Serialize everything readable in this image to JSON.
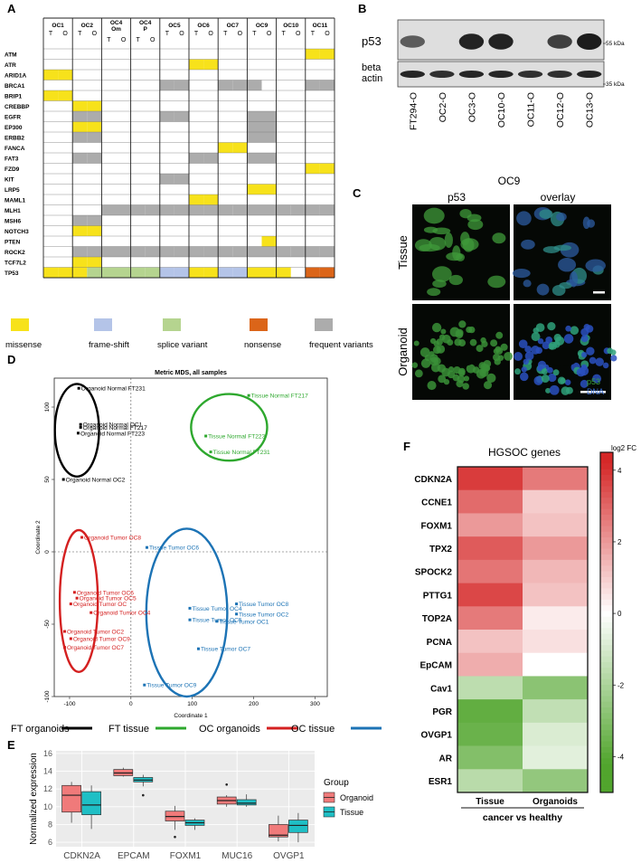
{
  "panels": {
    "A": {
      "letter": "A",
      "samples": [
        "OC1",
        "OC2",
        "OC4\nOm",
        "OC4\nP",
        "OC5",
        "OC6",
        "OC7",
        "OC9",
        "OC10",
        "OC11"
      ],
      "sub_labels": [
        "T",
        "O"
      ],
      "genes": [
        "ATM",
        "ATR",
        "ARID1A",
        "BRCA1",
        "BRIP1",
        "CREBBP",
        "EGFR",
        "EP300",
        "ERBB2",
        "FANCA",
        "FAT3",
        "FZD9",
        "KIT",
        "LRP5",
        "MAML1",
        "MLH1",
        "MSH6",
        "NOTCH3",
        "PTEN",
        "ROCK2",
        "TCF7L2",
        "TP53"
      ],
      "legend": [
        {
          "label": "missense",
          "color": "#f7e21b"
        },
        {
          "label": "frame-shift",
          "color": "#b4c4e8"
        },
        {
          "label": "splice variant",
          "color": "#b5d48f"
        },
        {
          "label": "nonsense",
          "color": "#db6519"
        },
        {
          "label": "frequent variants",
          "color": "#acacac"
        }
      ]
    },
    "B": {
      "letter": "B",
      "row_labels": [
        "p53",
        "beta\nactin"
      ],
      "markers": [
        "55 kDa",
        "35 kDa"
      ],
      "lanes": [
        "FT294-O",
        "OC2-O",
        "OC3-O",
        "OC10-O",
        "OC11-O",
        "OC12-O",
        "OC13-O"
      ],
      "p53_intensity": [
        0.55,
        0.0,
        0.95,
        0.95,
        0.0,
        0.75,
        1.0
      ],
      "actin_intensity": [
        0.9,
        0.85,
        0.9,
        0.9,
        0.85,
        0.85,
        0.9
      ]
    },
    "C": {
      "letter": "C",
      "title": "OC9",
      "col_labels": [
        "p53",
        "overlay"
      ],
      "row_labels": [
        "Tissue",
        "Organoid"
      ],
      "legend_p53": "p53",
      "legend_dna": "DNA"
    },
    "D": {
      "letter": "D",
      "title": "Metric MDS, all samples",
      "xlabel": "Coordinate 1",
      "ylabel": "Coordinate 2",
      "legend": [
        {
          "label": "FT organoids",
          "color": "#000000"
        },
        {
          "label": "FT tissue",
          "color": "#2ea82e"
        },
        {
          "label": "OC organoids",
          "color": "#d42020"
        },
        {
          "label": "OC tissue",
          "color": "#1c73b5"
        }
      ]
    },
    "E": {
      "letter": "E",
      "ylabel": "Normalized expression",
      "legend_title": "Group",
      "legend_items": [
        "Organoid",
        "Tissue"
      ]
    },
    "F": {
      "letter": "F",
      "title": "HGSOC genes",
      "colorbar_title": "log2 FC",
      "columns": [
        "Tissue",
        "Organoids"
      ],
      "footer": "cancer vs healthy"
    }
  },
  "chart_data": [
    {
      "type": "table",
      "panel": "A",
      "description_cells": {
        "ATM": {
          "OC11": [
            "yellow",
            "yellow"
          ]
        },
        "ATR": {
          "OC6": [
            "yellow",
            "yellow"
          ]
        },
        "ARID1A": {
          "OC1": [
            "yellow",
            "yellow"
          ]
        },
        "BRCA1": {
          "OC5": [
            "gray",
            "gray"
          ],
          "OC7": [
            "gray",
            "gray"
          ],
          "OC9": [
            "gray",
            "white"
          ],
          "OC11": [
            "gray",
            "gray"
          ]
        },
        "BRIP1": {
          "OC1": [
            "yellow",
            "yellow"
          ]
        },
        "CREBBP": {
          "OC2": [
            "yellow",
            "yellow"
          ]
        },
        "EGFR": {
          "OC2": [
            "gray",
            "gray"
          ],
          "OC5": [
            "gray",
            "gray"
          ],
          "OC9": [
            "gray",
            "gray"
          ]
        },
        "EP300": {
          "OC2": [
            "yellow",
            "yellow"
          ],
          "OC9": [
            "gray",
            "gray"
          ]
        },
        "ERBB2": {
          "OC2": [
            "gray",
            "gray"
          ],
          "OC9": [
            "gray",
            "gray"
          ]
        },
        "FANCA": {
          "OC7": [
            "yellow",
            "yellow"
          ]
        },
        "FAT3": {
          "OC2": [
            "gray",
            "gray"
          ],
          "OC6": [
            "gray",
            "gray"
          ],
          "OC9": [
            "gray",
            "gray"
          ]
        },
        "FZD9": {
          "OC11": [
            "yellow",
            "yellow"
          ]
        },
        "KIT": {
          "OC5": [
            "gray",
            "gray"
          ]
        },
        "LRP5": {
          "OC9": [
            "yellow",
            "yellow"
          ]
        },
        "MAML1": {
          "OC6": [
            "yellow",
            "yellow"
          ]
        },
        "MLH1": {
          "OC4\nOm": [
            "gray",
            "gray"
          ],
          "OC4\nP": [
            "gray",
            "gray"
          ],
          "OC5": [
            "gray",
            "gray"
          ],
          "OC6": [
            "gray",
            "gray"
          ],
          "OC7": [
            "gray",
            "gray"
          ],
          "OC9": [
            "gray",
            "gray"
          ],
          "OC10": [
            "gray",
            "gray"
          ],
          "OC11": [
            "gray",
            "gray"
          ]
        },
        "MSH6": {
          "OC2": [
            "gray",
            "gray"
          ]
        },
        "NOTCH3": {
          "OC2": [
            "yellow",
            "yellow"
          ]
        },
        "PTEN": {
          "OC9": [
            "white",
            "yellow"
          ]
        },
        "ROCK2": {
          "OC2": [
            "gray",
            "gray"
          ],
          "OC4\nOm": [
            "gray",
            "gray"
          ],
          "OC4\nP": [
            "gray",
            "gray"
          ],
          "OC5": [
            "gray",
            "gray"
          ],
          "OC6": [
            "gray",
            "gray"
          ],
          "OC7": [
            "gray",
            "gray"
          ],
          "OC9": [
            "gray",
            "gray"
          ],
          "OC10": [
            "gray",
            "gray"
          ],
          "OC11": [
            "gray",
            "gray"
          ]
        },
        "TCF7L2": {
          "OC2": [
            "yellow",
            "yellow"
          ]
        },
        "TP53": {
          "OC1": [
            "yellow",
            "yellow"
          ],
          "OC2": [
            "yellow",
            "green"
          ],
          "OC4\nOm": [
            "green",
            "green"
          ],
          "OC4\nP": [
            "green",
            "green"
          ],
          "OC5": [
            "blue",
            "blue"
          ],
          "OC6": [
            "yellow",
            "yellow"
          ],
          "OC7": [
            "blue",
            "blue"
          ],
          "OC9": [
            "yellow",
            "yellow"
          ],
          "OC10": [
            "yellow",
            "white"
          ],
          "OC11": [
            "orange",
            "orange"
          ]
        }
      }
    },
    {
      "type": "scatter",
      "panel": "D",
      "title": "Metric MDS, all samples",
      "xlabel": "Coordinate 1",
      "ylabel": "Coordinate 2",
      "xlim": [
        -125,
        320
      ],
      "ylim": [
        -100,
        120
      ],
      "xticks": [
        -100,
        0,
        100,
        200,
        300
      ],
      "yticks": [
        -100,
        -50,
        0,
        50,
        100
      ],
      "points": [
        {
          "label": "Organoid Normal FT231",
          "x": -85,
          "y": 113,
          "group": "FT organoids"
        },
        {
          "label": "Organoid Normal OC1",
          "x": -82,
          "y": 88,
          "group": "FT organoids"
        },
        {
          "label": "Organoid Normal FT217",
          "x": -82,
          "y": 86,
          "group": "FT organoids"
        },
        {
          "label": "Organoid Normal FT223",
          "x": -86,
          "y": 82,
          "group": "FT organoids"
        },
        {
          "label": "Organoid Normal OC2",
          "x": -110,
          "y": 50,
          "group": "FT organoids"
        },
        {
          "label": "Tissue Normal FT217",
          "x": 192,
          "y": 108,
          "group": "FT tissue"
        },
        {
          "label": "Tissue Normal FT223",
          "x": 122,
          "y": 80,
          "group": "FT tissue"
        },
        {
          "label": "Tissue Normal FT231",
          "x": 130,
          "y": 69,
          "group": "FT tissue"
        },
        {
          "label": "Organoid Tumor OC8",
          "x": -80,
          "y": 10,
          "group": "OC organoids"
        },
        {
          "label": "Organoid Tumor OC6",
          "x": -92,
          "y": -28,
          "group": "OC organoids"
        },
        {
          "label": "Organoid Tumor OC5",
          "x": -88,
          "y": -32,
          "group": "OC organoids"
        },
        {
          "label": "Organoid Tumor OC",
          "x": -98,
          "y": -36,
          "group": "OC organoids"
        },
        {
          "label": "Organoid Tumor OC4",
          "x": -65,
          "y": -42,
          "group": "OC organoids"
        },
        {
          "label": "Organoid Tumor OC2",
          "x": -108,
          "y": -55,
          "group": "OC organoids"
        },
        {
          "label": "Organoid Tumor OC9",
          "x": -98,
          "y": -60,
          "group": "OC organoids"
        },
        {
          "label": "Organoid Tumor OC7",
          "x": -108,
          "y": -66,
          "group": "OC organoids"
        },
        {
          "label": "Tissue Tumor OC6",
          "x": 26,
          "y": 3,
          "group": "OC tissue"
        },
        {
          "label": "Tissue Tumor OC8",
          "x": 172,
          "y": -36,
          "group": "OC tissue"
        },
        {
          "label": "Tissue Tumor OC4",
          "x": 96,
          "y": -39,
          "group": "OC tissue"
        },
        {
          "label": "Tissue Tumor OC2",
          "x": 172,
          "y": -43,
          "group": "OC tissue"
        },
        {
          "label": "Tissue Tumor OC5",
          "x": 96,
          "y": -47,
          "group": "OC tissue"
        },
        {
          "label": "Tissue Tumor OC1",
          "x": 140,
          "y": -48,
          "group": "OC tissue"
        },
        {
          "label": "Tissue Tumor OC7",
          "x": 110,
          "y": -67,
          "group": "OC tissue"
        },
        {
          "label": "Tissue Tumor OC9",
          "x": 22,
          "y": -92,
          "group": "OC tissue"
        }
      ]
    },
    {
      "type": "bar",
      "subtype": "boxplot",
      "panel": "E",
      "ylabel": "Normalized expression",
      "ylim": [
        5.5,
        16.3
      ],
      "yticks": [
        6,
        8,
        10,
        12,
        14,
        16
      ],
      "categories": [
        "CDKN2A",
        "EPCAM",
        "FOXM1",
        "MUC16",
        "OVGP1"
      ],
      "series": [
        {
          "name": "Organoid",
          "color": "#f07a7a",
          "boxes": [
            {
              "min": 8.2,
              "q1": 9.4,
              "median": 11.3,
              "q3": 12.4,
              "max": 12.8,
              "outliers": []
            },
            {
              "min": 13.4,
              "q1": 13.5,
              "median": 13.8,
              "q3": 14.2,
              "max": 14.4,
              "outliers": []
            },
            {
              "min": 7.4,
              "q1": 8.4,
              "median": 8.9,
              "q3": 9.5,
              "max": 10.1,
              "outliers": [
                6.6
              ]
            },
            {
              "min": 10.0,
              "q1": 10.3,
              "median": 10.7,
              "q3": 11.1,
              "max": 11.3,
              "outliers": [
                12.5
              ]
            },
            {
              "min": 6.1,
              "q1": 6.6,
              "median": 6.8,
              "q3": 8.0,
              "max": 9.0,
              "outliers": []
            }
          ]
        },
        {
          "name": "Tissue",
          "color": "#1fbfc5",
          "boxes": [
            {
              "min": 7.5,
              "q1": 9.1,
              "median": 10.2,
              "q3": 11.7,
              "max": 12.4,
              "outliers": []
            },
            {
              "min": 12.3,
              "q1": 12.8,
              "median": 13.0,
              "q3": 13.3,
              "max": 13.6,
              "outliers": [
                11.3
              ]
            },
            {
              "min": 7.4,
              "q1": 7.9,
              "median": 8.2,
              "q3": 8.5,
              "max": 8.7,
              "outliers": []
            },
            {
              "min": 10.0,
              "q1": 10.2,
              "median": 10.4,
              "q3": 10.8,
              "max": 11.4,
              "outliers": []
            },
            {
              "min": 6.0,
              "q1": 7.1,
              "median": 7.9,
              "q3": 8.5,
              "max": 9.3,
              "outliers": []
            }
          ]
        }
      ]
    },
    {
      "type": "heatmap",
      "panel": "F",
      "title": "HGSOC genes",
      "columns": [
        "Tissue",
        "Organoids"
      ],
      "rows": [
        "CDKN2A",
        "CCNE1",
        "FOXM1",
        "TPX2",
        "SPOCK2",
        "PTTG1",
        "TOP2A",
        "PCNA",
        "EpCAM",
        "Cav1",
        "PGR",
        "OVGP1",
        "AR",
        "ESR1"
      ],
      "values": [
        [
          3.8,
          2.6
        ],
        [
          2.9,
          1.0
        ],
        [
          2.0,
          1.2
        ],
        [
          3.2,
          2.0
        ],
        [
          2.7,
          1.4
        ],
        [
          3.6,
          1.2
        ],
        [
          2.6,
          0.4
        ],
        [
          1.2,
          0.6
        ],
        [
          1.6,
          0.0
        ],
        [
          -1.6,
          -2.8
        ],
        [
          -3.8,
          -1.5
        ],
        [
          -3.6,
          -0.9
        ],
        [
          -3.0,
          -0.7
        ],
        [
          -1.7,
          -2.6
        ]
      ],
      "colorbar": {
        "title": "log2 FC",
        "min": -5,
        "max": 4.5,
        "ticks": [
          4,
          2,
          0,
          -2,
          -4
        ]
      }
    }
  ]
}
